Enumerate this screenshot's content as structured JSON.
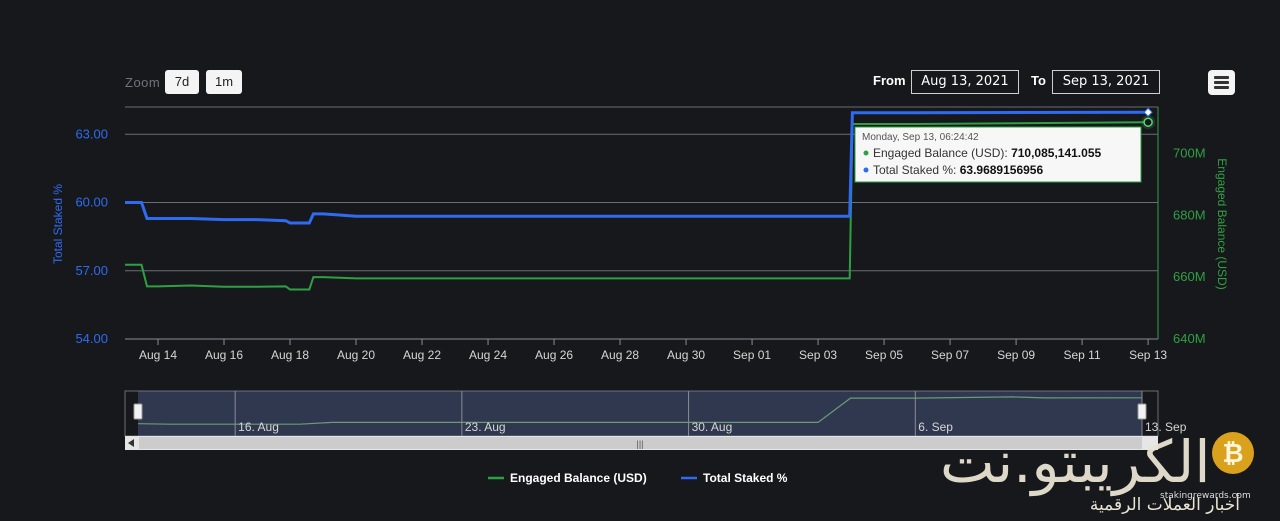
{
  "toolbar": {
    "zoom_label": "Zoom",
    "zoom_buttons": [
      "7d",
      "1m"
    ],
    "from_label": "From",
    "from_value": "Aug 13, 2021",
    "to_label": "To",
    "to_value": "Sep 13, 2021",
    "menu_icon": "hamburger-menu-icon"
  },
  "chart_data": {
    "type": "line",
    "x_ticks": [
      "Aug 14",
      "Aug 16",
      "Aug 18",
      "Aug 20",
      "Aug 22",
      "Aug 24",
      "Aug 26",
      "Aug 28",
      "Aug 30",
      "Sep 01",
      "Sep 03",
      "Sep 05",
      "Sep 07",
      "Sep 09",
      "Sep 11",
      "Sep 13"
    ],
    "x_range_days": [
      0,
      31.3
    ],
    "y_left": {
      "label": "Total Staked %",
      "ticks": [
        "54.00",
        "57.00",
        "60.00",
        "63.00"
      ],
      "range": [
        54,
        64.2
      ]
    },
    "y_right": {
      "label": "Engaged Balance (USD)",
      "ticks": [
        "640M",
        "660M",
        "680M",
        "700M"
      ],
      "range": [
        640000000,
        715000000
      ]
    },
    "grid": true,
    "legend_position": "bottom-center",
    "series": [
      {
        "name": "Total Staked %",
        "color": "#2f6bf0",
        "axis": "left",
        "x": [
          "2021-08-13",
          "2021-08-13T12:00",
          "2021-08-13T16:00",
          "2021-08-14",
          "2021-08-15",
          "2021-08-16",
          "2021-08-17",
          "2021-08-17T21:00",
          "2021-08-18",
          "2021-08-18T14:00",
          "2021-08-18T17:00",
          "2021-08-19",
          "2021-08-19T12:00",
          "2021-08-20",
          "2021-08-21",
          "2021-08-25",
          "2021-08-30",
          "2021-09-03",
          "2021-09-03T23:00",
          "2021-09-04T01:00",
          "2021-09-06",
          "2021-09-13"
        ],
        "values": [
          60.0,
          60.0,
          59.3,
          59.3,
          59.3,
          59.25,
          59.25,
          59.2,
          59.1,
          59.1,
          59.5,
          59.5,
          59.45,
          59.4,
          59.4,
          59.4,
          59.4,
          59.4,
          59.4,
          63.95,
          63.95,
          63.97
        ]
      },
      {
        "name": "Engaged Balance (USD)",
        "color": "#2ea043",
        "axis": "right",
        "x": [
          "2021-08-13",
          "2021-08-13T12:00",
          "2021-08-13T16:00",
          "2021-08-14",
          "2021-08-15",
          "2021-08-16",
          "2021-08-17",
          "2021-08-17T21:00",
          "2021-08-18",
          "2021-08-18T14:00",
          "2021-08-18T17:00",
          "2021-08-19",
          "2021-08-19T12:00",
          "2021-08-20",
          "2021-08-21",
          "2021-08-25",
          "2021-08-30",
          "2021-09-03",
          "2021-09-03T23:00",
          "2021-09-04T01:00",
          "2021-09-06",
          "2021-09-13"
        ],
        "values": [
          664000000,
          664000000,
          657000000,
          657000000,
          657300000,
          656900000,
          656900000,
          657000000,
          656000000,
          656000000,
          660000000,
          660000000,
          659800000,
          659600000,
          659600000,
          659600000,
          659600000,
          659600000,
          659600000,
          709500000,
          709500000,
          710085141
        ]
      }
    ],
    "navigator_series": {
      "name": "Navigator",
      "x": [
        "2021-08-13",
        "2021-08-14",
        "2021-08-18",
        "2021-08-19",
        "2021-09-03",
        "2021-09-04",
        "2021-09-06",
        "2021-09-09",
        "2021-09-10",
        "2021-09-13"
      ],
      "values": [
        657000000,
        656000000,
        656000000,
        659600000,
        659600000,
        709500000,
        709500000,
        712000000,
        710000000,
        710085141
      ]
    },
    "navigator_labels": [
      "16. Aug",
      "23. Aug",
      "30. Aug",
      "6. Sep",
      "13. Sep"
    ],
    "tooltip": {
      "title": "Monday, Sep 13, 06:24:42",
      "rows": [
        {
          "name": "Engaged Balance (USD)",
          "value": "710,085,141.055",
          "color": "#2ea043"
        },
        {
          "name": "Total Staked %",
          "value": "63.9689156956",
          "color": "#2f6bf0"
        }
      ]
    },
    "legend": [
      {
        "name": "Engaged Balance (USD)",
        "color": "#2ea043"
      },
      {
        "name": "Total Staked %",
        "color": "#2f6bf0"
      }
    ]
  },
  "watermark": {
    "arabic_title": "الكريبتو.نت",
    "arabic_subtitle": "أخبار العملات الرقمية",
    "url": "stakingrewards.com",
    "coin_symbol": "₿"
  }
}
